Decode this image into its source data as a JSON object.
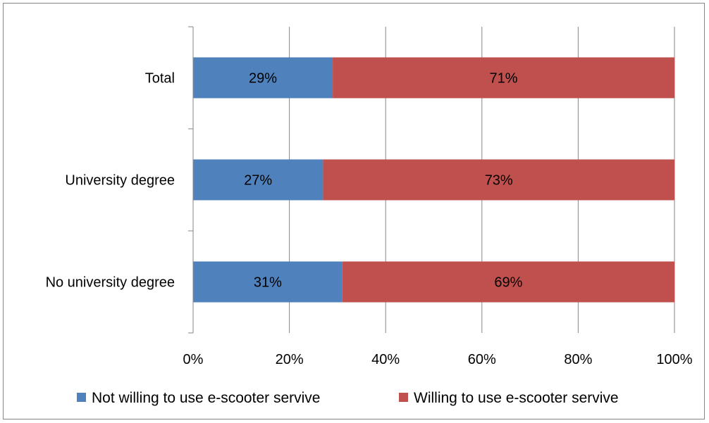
{
  "chart_data": {
    "type": "bar",
    "orientation": "horizontal",
    "stacked": "percent",
    "categories": [
      "Total",
      "University degree",
      "No university degree"
    ],
    "series": [
      {
        "name": "Not willing to use e-scooter servive",
        "values": [
          29,
          27,
          31
        ],
        "labels": [
          "29%",
          "27%",
          "31%"
        ],
        "color": "#4F81BD"
      },
      {
        "name": "Willing to use e-scooter servive",
        "values": [
          71,
          73,
          69
        ],
        "labels": [
          "71%",
          "73%",
          "69%"
        ],
        "color": "#C0504D"
      }
    ],
    "xlim": [
      0,
      100
    ],
    "x_ticks": [
      "0%",
      "20%",
      "40%",
      "60%",
      "80%",
      "100%"
    ],
    "grid": "vertical",
    "legend": "bottom"
  }
}
